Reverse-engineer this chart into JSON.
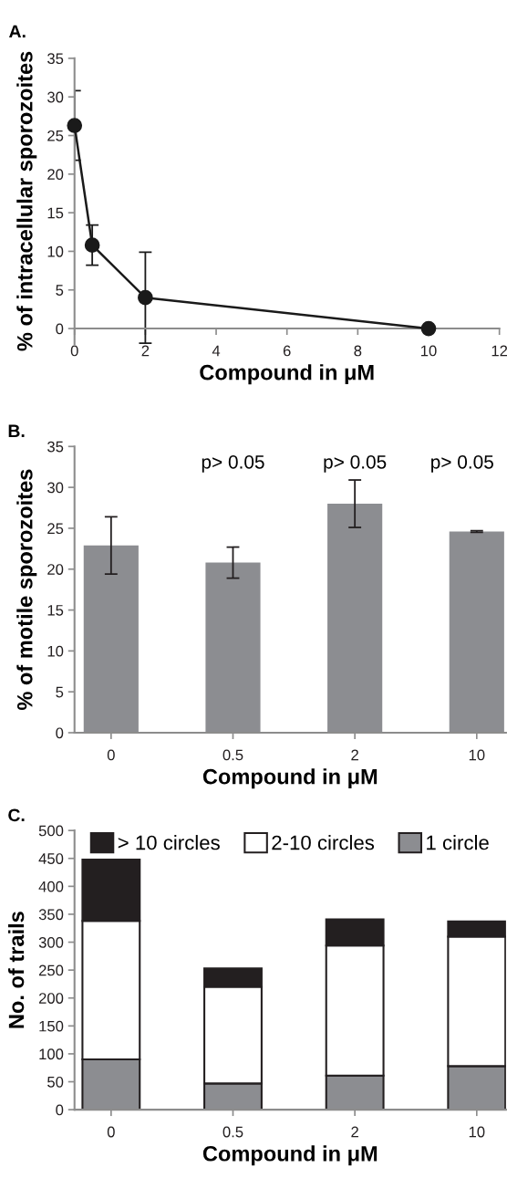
{
  "chart_data": [
    {
      "type": "line",
      "title": "A.",
      "xlabel": "Compound in μM",
      "ylabel": "% of intracellular sporozoites",
      "x": [
        0,
        0.5,
        2,
        10
      ],
      "series": [
        {
          "color": "#1a1a1a",
          "values": [
            26.3,
            10.8,
            4.0,
            0
          ],
          "errors": [
            4.5,
            2.6,
            5.9,
            null
          ]
        }
      ],
      "xlim": [
        0,
        12
      ],
      "xticks": [
        0,
        2,
        4,
        6,
        8,
        10,
        12
      ],
      "ylim": [
        -2,
        35
      ],
      "yticks": [
        0,
        5,
        10,
        15,
        20,
        25,
        30,
        35
      ],
      "marker": "circle",
      "line_style": "solid",
      "grid": false,
      "legend": false
    },
    {
      "type": "bar",
      "title": "B.",
      "xlabel": "Compound in μM",
      "ylabel": "% of motile sporozoites",
      "categories": [
        "0",
        "0.5",
        "2",
        "10"
      ],
      "series": [
        {
          "color": "#8c8d91",
          "values": [
            22.9,
            20.8,
            28.0,
            24.6
          ],
          "errors": [
            3.5,
            1.9,
            2.9,
            0.1
          ]
        }
      ],
      "ylim": [
        0,
        35
      ],
      "yticks": [
        0,
        5,
        10,
        15,
        20,
        25,
        30,
        35
      ],
      "grid": false,
      "legend": false,
      "annotations": [
        "p> 0.05",
        "p> 0.05",
        "p> 0.05"
      ]
    },
    {
      "type": "bar",
      "title": "C.",
      "xlabel": "Compound in μM",
      "ylabel": "No. of trails",
      "categories": [
        "0",
        "0.5",
        "2",
        "10"
      ],
      "stacked": true,
      "series": [
        {
          "name": "1 circle",
          "color": "#8c8d91",
          "values": [
            90,
            47,
            61,
            78
          ]
        },
        {
          "name": "2-10 circles",
          "color": "#ffffff",
          "values": [
            248,
            173,
            233,
            232
          ]
        },
        {
          "name": "> 10 circles",
          "color": "#231f20",
          "values": [
            110,
            33,
            47,
            27
          ]
        }
      ],
      "ylim": [
        0,
        500
      ],
      "yticks": [
        0,
        50,
        100,
        150,
        200,
        250,
        300,
        350,
        400,
        450,
        500
      ],
      "grid": false,
      "legend": "top"
    }
  ]
}
